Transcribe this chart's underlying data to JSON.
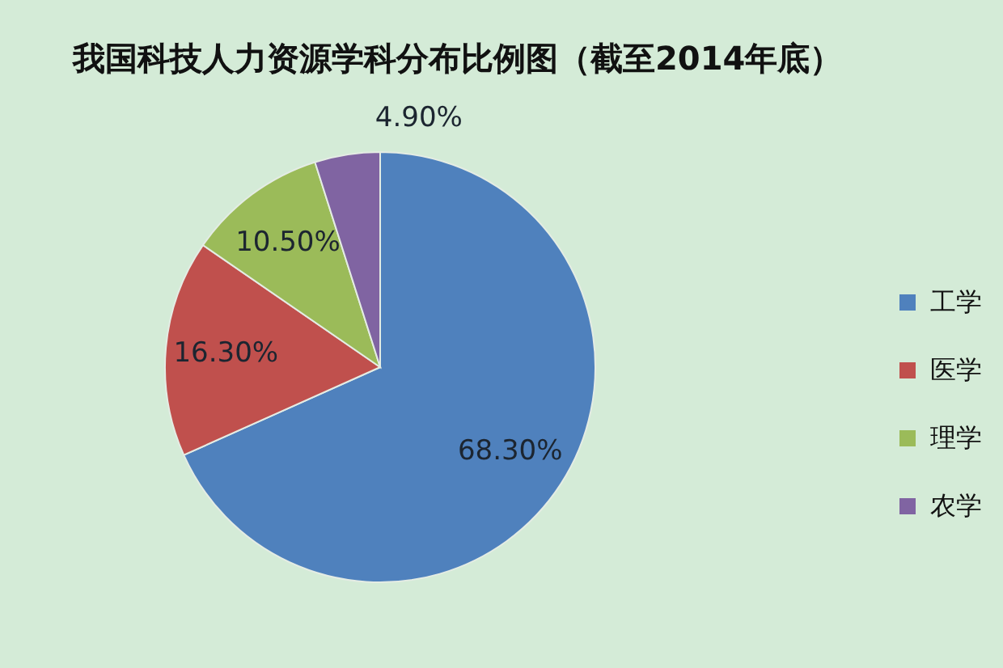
{
  "chart_data": {
    "type": "pie",
    "title": "我国科技人力资源学科分布比例图（截至2014年底）",
    "categories": [
      "工学",
      "医学",
      "理学",
      "农学"
    ],
    "values": [
      68.3,
      16.3,
      10.5,
      4.9
    ],
    "colors": [
      "#4f81bd",
      "#c0504d",
      "#9bbb59",
      "#8064a2"
    ],
    "value_labels": [
      "68.30%",
      "16.30%",
      "10.50%",
      "4.90%"
    ],
    "legend": "right"
  }
}
